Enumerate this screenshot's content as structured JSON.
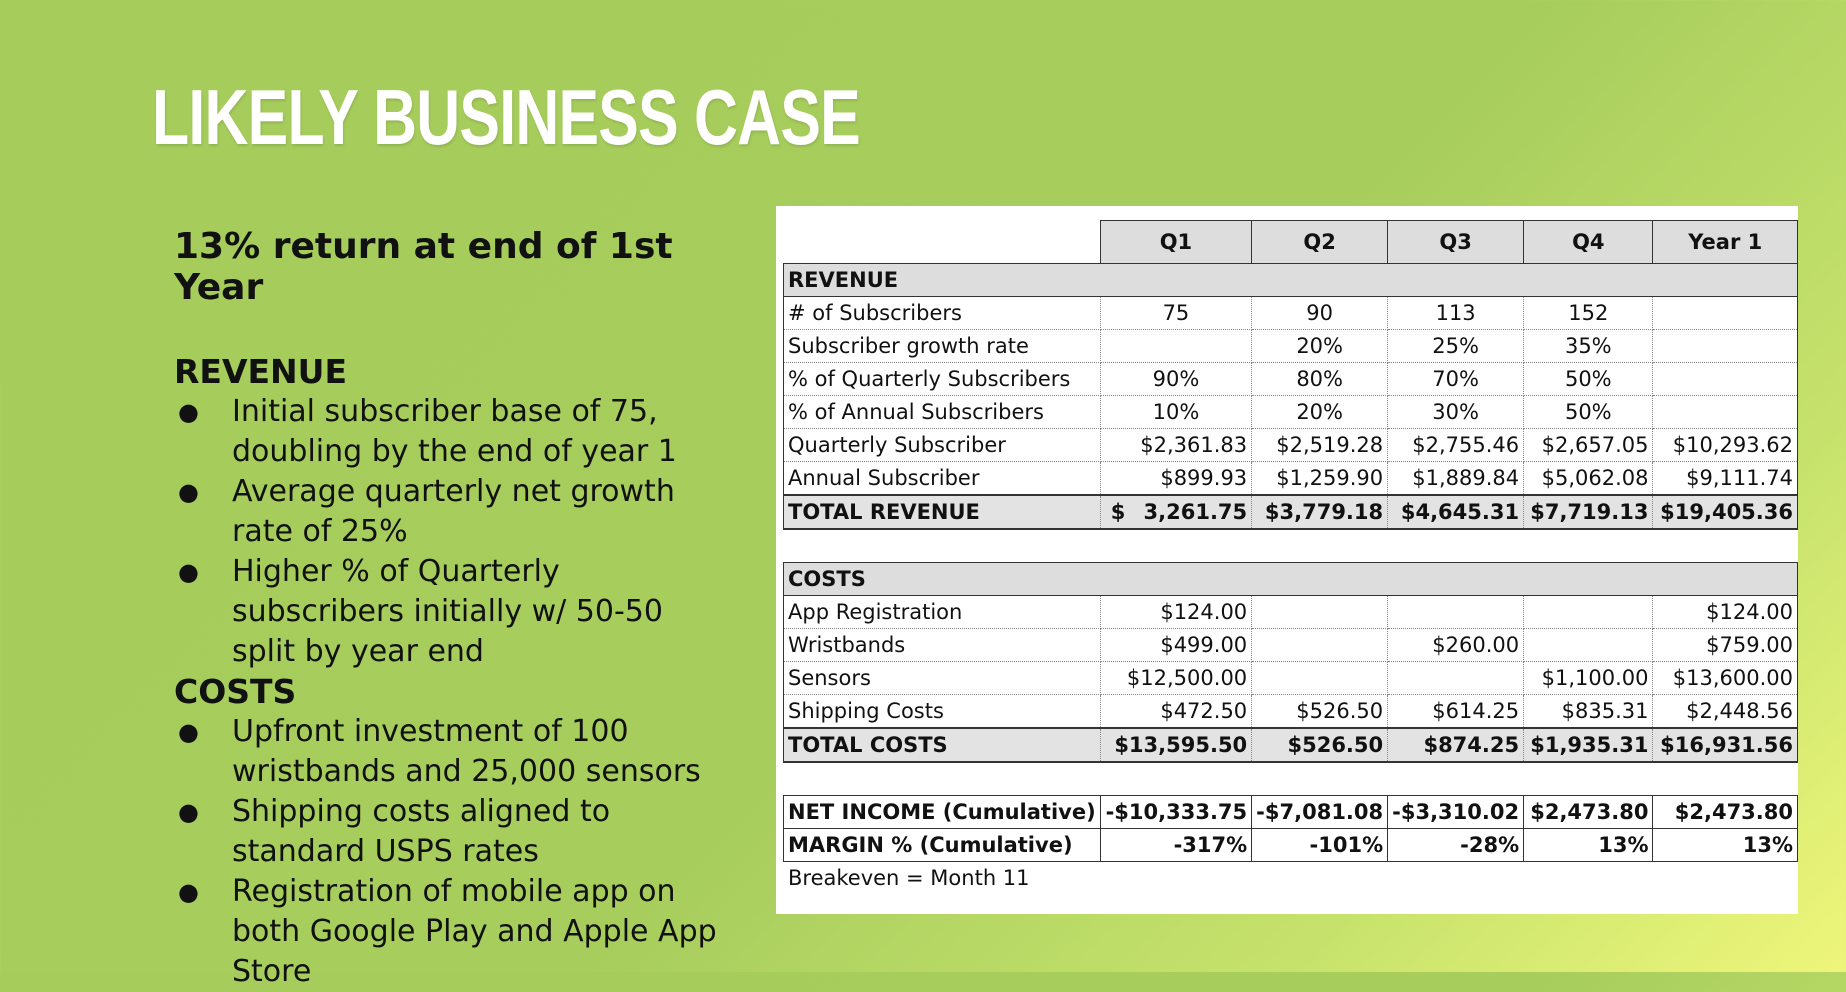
{
  "title": "Likely Business Case",
  "subtitle": "13% return at end of 1st Year",
  "revenue_section": {
    "heading": "REVENUE",
    "bullets": [
      "Initial subscriber base of 75, doubling by the end of year 1",
      "Average quarterly net growth rate of 25%",
      "Higher % of Quarterly subscribers initially w/ 50-50 split by year end"
    ]
  },
  "costs_section": {
    "heading": "COSTS",
    "bullets": [
      "Upfront investment of 100 wristbands and 25,000 sensors",
      "Shipping costs aligned to standard USPS rates",
      "Registration of mobile app on both Google Play and Apple App Store"
    ]
  },
  "bullet_glyph": "●",
  "table": {
    "columns": [
      "Q1",
      "Q2",
      "Q3",
      "Q4",
      "Year 1"
    ],
    "revenue_header": "REVENUE",
    "revenue_rows": [
      {
        "label": "# of Subscribers",
        "cells": [
          "75",
          "90",
          "113",
          "152",
          ""
        ]
      },
      {
        "label": "Subscriber growth rate",
        "cells": [
          "",
          "20%",
          "25%",
          "35%",
          ""
        ]
      },
      {
        "label": "% of Quarterly Subscribers",
        "cells": [
          "90%",
          "80%",
          "70%",
          "50%",
          ""
        ]
      },
      {
        "label": "% of Annual Subscribers",
        "cells": [
          "10%",
          "20%",
          "30%",
          "50%",
          ""
        ]
      },
      {
        "label": "Quarterly Subscriber",
        "cells": [
          "$2,361.83",
          "$2,519.28",
          "$2,755.46",
          "$2,657.05",
          "$10,293.62"
        ]
      },
      {
        "label": "Annual Subscriber",
        "cells": [
          "$899.93",
          "$1,259.90",
          "$1,889.84",
          "$5,062.08",
          "$9,111.74"
        ]
      }
    ],
    "total_revenue": {
      "label": "TOTAL REVENUE",
      "q1_currency": "$",
      "q1_amount": "3,261.75",
      "cells": [
        "$3,779.18",
        "$4,645.31",
        "$7,719.13",
        "$19,405.36"
      ]
    },
    "costs_header": "COSTS",
    "cost_rows": [
      {
        "label": "App Registration",
        "cells": [
          "$124.00",
          "",
          "",
          "",
          "$124.00"
        ]
      },
      {
        "label": "Wristbands",
        "cells": [
          "$499.00",
          "",
          "$260.00",
          "",
          "$759.00"
        ]
      },
      {
        "label": "Sensors",
        "cells": [
          "$12,500.00",
          "",
          "",
          "$1,100.00",
          "$13,600.00"
        ]
      },
      {
        "label": "Shipping Costs",
        "cells": [
          "$472.50",
          "$526.50",
          "$614.25",
          "$835.31",
          "$2,448.56"
        ]
      }
    ],
    "total_costs": {
      "label": "TOTAL COSTS",
      "cells": [
        "$13,595.50",
        "$526.50",
        "$874.25",
        "$1,935.31",
        "$16,931.56"
      ]
    },
    "net_income": {
      "label": "NET INCOME (Cumulative)",
      "cells": [
        "-$10,333.75",
        "-$7,081.08",
        "-$3,310.02",
        "$2,473.80",
        "$2,473.80"
      ]
    },
    "margin": {
      "label": "MARGIN % (Cumulative)",
      "cells": [
        "-317%",
        "-101%",
        "-28%",
        "13%",
        "13%"
      ]
    },
    "note": "Breakeven = Month 11"
  }
}
